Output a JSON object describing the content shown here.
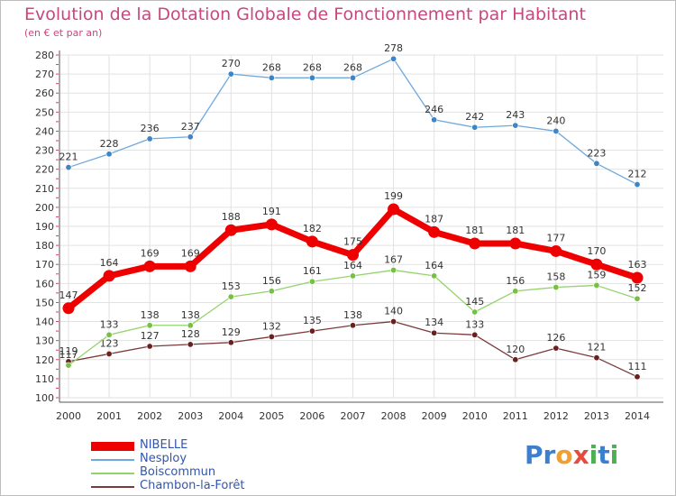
{
  "title": "Evolution de la Dotation Globale de Fonctionnement par Habitant",
  "subtitle": "(en € et par an)",
  "logo": {
    "text": "Proxiti",
    "letters": [
      "P",
      "r",
      "o",
      "x",
      "i",
      "t",
      "i"
    ],
    "colors": [
      "#3a7fd0",
      "#3a7fd0",
      "#f0a030",
      "#e84b3c",
      "#4caf50",
      "#3a7fd0",
      "#4caf50"
    ]
  },
  "chart_data": {
    "type": "line",
    "title": "Evolution de la Dotation Globale de Fonctionnement par Habitant",
    "subtitle": "(en € et par an)",
    "x": [
      "2000",
      "2001",
      "2002",
      "2003",
      "2004",
      "2005",
      "2006",
      "2007",
      "2008",
      "2009",
      "2010",
      "2011",
      "2012",
      "2013",
      "2014"
    ],
    "ylim": [
      100,
      280
    ],
    "yticks": [
      100,
      110,
      120,
      130,
      140,
      150,
      160,
      170,
      180,
      190,
      200,
      210,
      220,
      230,
      240,
      250,
      260,
      270,
      280
    ],
    "grid": true,
    "legend_position": "bottom-left",
    "series": [
      {
        "name": "NIBELLE",
        "color": "#ee0000",
        "values": [
          147,
          164,
          169,
          169,
          188,
          191,
          182,
          175,
          199,
          187,
          181,
          181,
          177,
          170,
          163
        ]
      },
      {
        "name": "Nesploy",
        "color": "#6fa8dc",
        "marker": "#3d85c6",
        "values": [
          221,
          228,
          236,
          237,
          270,
          268,
          268,
          268,
          278,
          246,
          242,
          243,
          240,
          223,
          212
        ]
      },
      {
        "name": "Boiscommun",
        "color": "#93d36b",
        "marker": "#76c043",
        "values": [
          117,
          133,
          138,
          138,
          153,
          156,
          161,
          164,
          167,
          164,
          145,
          156,
          158,
          159,
          152
        ]
      },
      {
        "name": "Chambon-la-Forêt",
        "color": "#7b3a3a",
        "marker": "#6b2020",
        "values": [
          119,
          123,
          127,
          128,
          129,
          132,
          135,
          138,
          140,
          134,
          133,
          120,
          126,
          121,
          111
        ]
      }
    ]
  }
}
